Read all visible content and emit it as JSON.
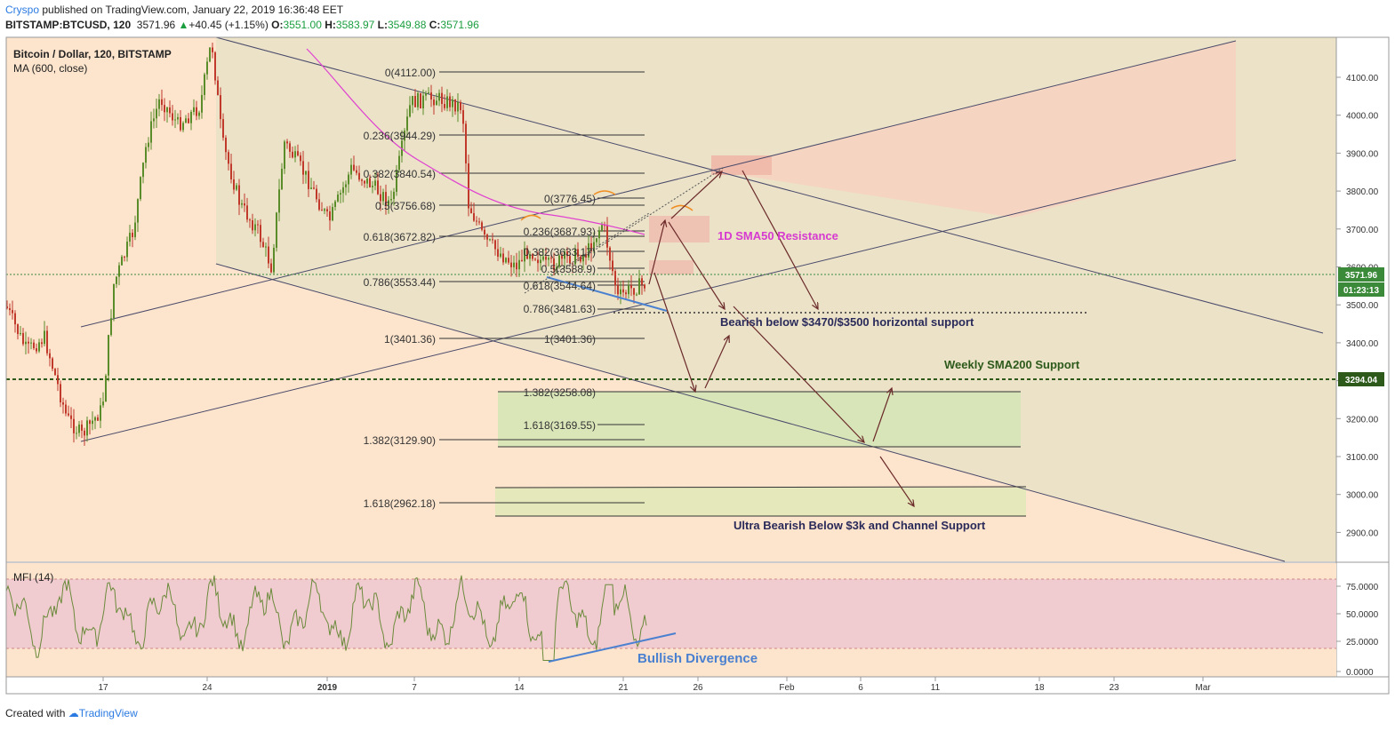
{
  "header": {
    "user": "Cryspo",
    "published_text": " published on TradingView.com, January 22, 2019 16:36:48 EET",
    "symbol": "BITSTAMP:BTCUSD, 120",
    "last": "3571.96",
    "change": "+40.45 (+1.15%)",
    "open_label": "O:",
    "open": "3551.00",
    "high_label": "H:",
    "high": "3583.97",
    "low_label": "L:",
    "low": "3549.88",
    "close_label": "C:",
    "close": "3571.96",
    "arrow": "▲"
  },
  "legend": {
    "title": "Bitcoin / Dollar, 120, BITSTAMP",
    "ma": "MA (600, close)",
    "mfi": "MFI (14)"
  },
  "colors": {
    "candle_up": "#5b8c2a",
    "candle_down": "#c0392b",
    "ma_line": "#e040d0",
    "channel": "#4a4a6a",
    "mfi_line": "#6a8a3a",
    "mfi_band": "#f0c8d0",
    "pink_zone": "#f7c7b0",
    "sand_zone": "#e8e0c0",
    "green_zone": "#d8e8b8",
    "sma200": "#2d5a1a",
    "divergence": "#4a80d0",
    "arrow": "#6b2a2a"
  },
  "price_axis": {
    "ticks": [
      "4100.00",
      "4000.00",
      "3900.00",
      "3800.00",
      "3700.00",
      "3600.00",
      "3500.00",
      "3400.00",
      "3300.00",
      "3200.00",
      "3100.00",
      "3000.00",
      "2900.00"
    ],
    "last_price_tag": "3571.96",
    "countdown_tag": "01:23:13",
    "sma200_tag": "3294.04"
  },
  "mfi_axis": {
    "ticks": [
      "75.0000",
      "50.0000",
      "25.0000",
      "0.0000"
    ]
  },
  "time_axis": {
    "ticks": [
      "17",
      "24",
      "2019",
      "7",
      "14",
      "21",
      "26",
      "Feb",
      "6",
      "11",
      "18",
      "23",
      "Mar"
    ]
  },
  "fib_left": {
    "labels": [
      "0(4112.00)",
      "0.236(3944.29)",
      "0.382(3840.54)",
      "0.5(3756.68)",
      "0.618(3672.82)",
      "0.786(3553.44)",
      "1(3401.36)",
      "1.382(3129.90)",
      "1.618(2962.18)"
    ]
  },
  "fib_right": {
    "labels": [
      "0(3776.45)",
      "0.236(3687.93)",
      "0.382(3633.17)",
      "0.5(3588.9)",
      "0.618(3544.64)",
      "0.786(3481.63)",
      "1(3401.36)",
      "1.382(3258.08)",
      "1.618(3169.55)"
    ]
  },
  "annotations": {
    "sma50": "1D SMA50 Resistance",
    "bearish": "Bearish below $3470/$3500 horizontal support",
    "sma200": "Weekly SMA200 Support",
    "ultra": "Ultra Bearish Below $3k and Channel Support",
    "divergence": "Bullish Divergence"
  },
  "footer": {
    "created": "Created with ",
    "brand": "TradingView"
  },
  "chart_data": {
    "type": "line",
    "title": "Bitcoin / Dollar, 120, BITSTAMP",
    "indicator": "MA (600, close)",
    "ylim": [
      2820,
      4200
    ],
    "fib_levels_left": [
      4112.0,
      3944.29,
      3840.54,
      3756.68,
      3672.82,
      3553.44,
      3401.36,
      3129.9,
      2962.18
    ],
    "fib_levels_right": [
      3776.45,
      3687.93,
      3633.17,
      3588.9,
      3544.64,
      3481.63,
      3401.36,
      3258.08,
      3169.55
    ],
    "last_price": 3571.96,
    "sma200_weekly": 3294.04,
    "mfi_levels": [
      75,
      50,
      25,
      0
    ]
  }
}
